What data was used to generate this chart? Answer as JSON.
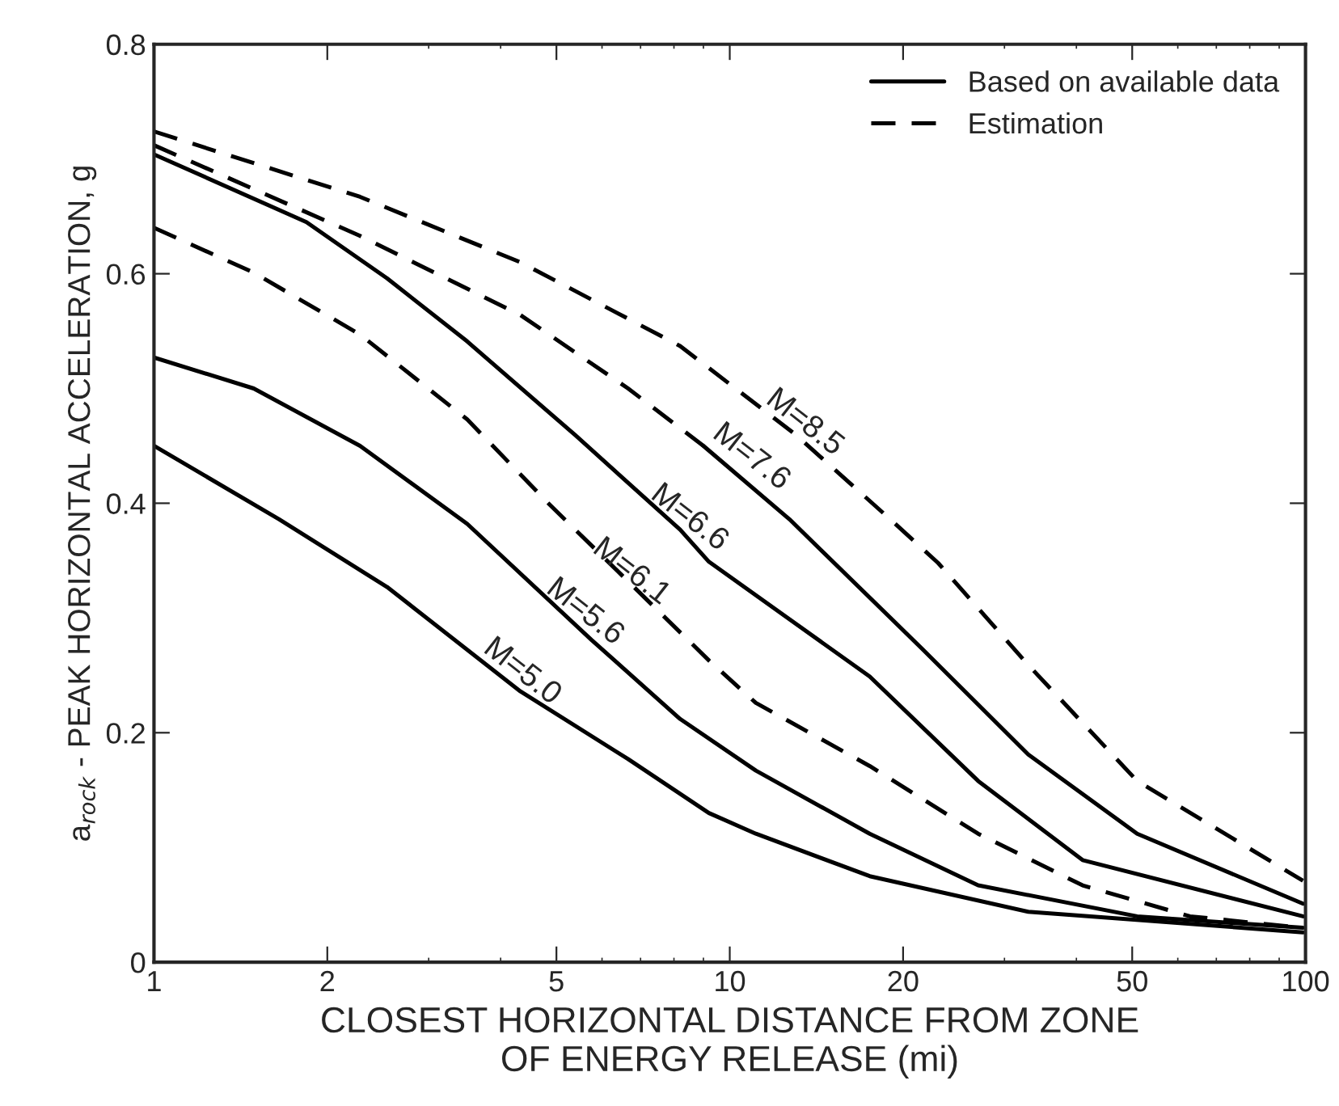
{
  "chart_data": {
    "type": "line",
    "xlabel": "CLOSEST HORIZONTAL DISTANCE FROM ZONE\nOF ENERGY RELEASE (mi)",
    "ylabel": "a$_{rock}$ - PEAK HORIZONTAL ACCELERATION, g",
    "log": "x",
    "xlim": [
      1,
      100
    ],
    "xticks": [
      1,
      2,
      5,
      10,
      20,
      50,
      100
    ],
    "ylim": [
      0,
      0.8
    ],
    "yticks": [
      0,
      0.2,
      0.4,
      0.6,
      0.8
    ],
    "grid": false,
    "legend": "top right",
    "series": [
      {
        "color": "#000000",
        "line_style": "dashed",
        "x": [
          1,
          2.28,
          4.33,
          8.2,
          13,
          19,
          23,
          33,
          51,
          99
        ],
        "values": [
          0.724,
          0.667,
          0.61,
          0.537,
          0.46,
          0.386,
          0.348,
          0.259,
          0.158,
          0.071
        ]
      },
      {
        "color": "#000000",
        "line_style": "dashed",
        "x": [
          1,
          2.28,
          4.33,
          6.66,
          9
        ],
        "values": [
          0.712,
          0.633,
          0.564,
          0.5,
          0.45
        ]
      },
      {
        "color": "#000000",
        "line_style": "solid",
        "x": [
          9,
          12.7,
          21.6,
          33,
          51,
          99
        ],
        "values": [
          0.45,
          0.386,
          0.273,
          0.181,
          0.112,
          0.051
        ]
      },
      {
        "name": "Based on available data",
        "color": "#000000",
        "line_style": "solid",
        "x": [
          1,
          1.84,
          2.54,
          3.5,
          5.4,
          8.2,
          9.2,
          17.5,
          27,
          41,
          99
        ],
        "values": [
          0.704,
          0.645,
          0.596,
          0.541,
          0.459,
          0.377,
          0.349,
          0.249,
          0.158,
          0.089,
          0.04
        ]
      },
      {
        "name": "Estimation",
        "color": "#000000",
        "line_style": "dashed",
        "x": [
          1,
          1.49,
          2.28,
          3.5,
          4.84,
          9.2,
          11.1,
          17.5,
          27,
          41,
          63,
          99
        ],
        "values": [
          0.64,
          0.601,
          0.547,
          0.473,
          0.4,
          0.263,
          0.226,
          0.171,
          0.112,
          0.067,
          0.04,
          0.03
        ]
      },
      {
        "color": "#000000",
        "line_style": "solid",
        "x": [
          1,
          1.49,
          2.28,
          3.5,
          5.75,
          8.2,
          11.1,
          17.5,
          27,
          51,
          99
        ],
        "values": [
          0.527,
          0.5,
          0.45,
          0.382,
          0.281,
          0.212,
          0.167,
          0.112,
          0.067,
          0.04,
          0.03
        ]
      },
      {
        "color": "#000000",
        "line_style": "solid",
        "x": [
          1,
          1.65,
          2.54,
          4.33,
          6.66,
          9.2,
          11.1,
          17.5,
          33,
          99
        ],
        "values": [
          0.45,
          0.386,
          0.327,
          0.236,
          0.177,
          0.13,
          0.112,
          0.075,
          0.044,
          0.026
        ]
      }
    ],
    "annotations": [
      {
        "text": "M=8.5",
        "x": 13,
        "y": 0.46
      },
      {
        "text": "M=7.6",
        "x": 10.5,
        "y": 0.43
      },
      {
        "text": "M=6.6",
        "x": 8.2,
        "y": 0.377
      },
      {
        "text": "M=6.1",
        "x": 6.5,
        "y": 0.33
      },
      {
        "text": "M=5.6",
        "x": 5.4,
        "y": 0.295
      },
      {
        "text": "M=5.0",
        "x": 4.2,
        "y": 0.243
      }
    ]
  }
}
